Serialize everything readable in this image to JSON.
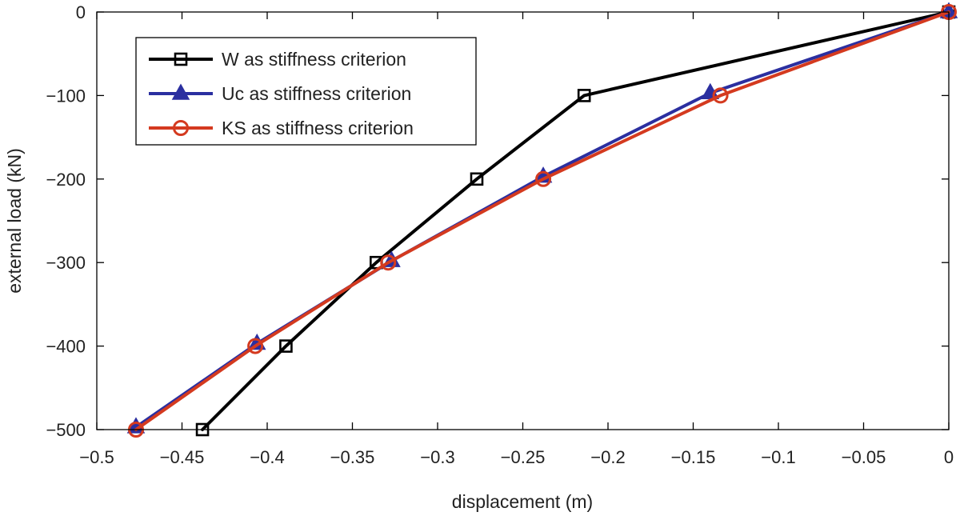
{
  "chart_data": {
    "type": "line",
    "title": "",
    "xlabel": "displacement (m)",
    "ylabel": "external load (kN)",
    "xlim": [
      -0.5,
      0
    ],
    "ylim": [
      -500,
      0
    ],
    "grid": false,
    "legend_position": "top-left",
    "xticks": [
      -0.5,
      -0.45,
      -0.4,
      -0.35,
      -0.3,
      -0.25,
      -0.2,
      -0.15,
      -0.1,
      -0.05,
      0
    ],
    "xtick_labels": [
      "−0.5",
      "−0.45",
      "−0.4",
      "−0.35",
      "−0.3",
      "−0.25",
      "−0.2",
      "−0.15",
      "−0.1",
      "−0.05",
      "0"
    ],
    "yticks": [
      0,
      -100,
      -200,
      -300,
      -400,
      -500
    ],
    "ytick_labels": [
      "0",
      "−100",
      "−200",
      "−300",
      "−400",
      "−500"
    ],
    "series": [
      {
        "key": "w",
        "name": "W as stiffness criterion",
        "color": "#000000",
        "marker": "square",
        "x": [
          0,
          -0.214,
          -0.277,
          -0.336,
          -0.389,
          -0.438
        ],
        "y": [
          0,
          -100,
          -200,
          -300,
          -400,
          -500
        ]
      },
      {
        "key": "uc",
        "name": "Uc as stiffness criterion",
        "color": "#2b2fa0",
        "marker": "triangle",
        "x": [
          0,
          -0.14,
          -0.238,
          -0.327,
          -0.406,
          -0.477
        ],
        "y": [
          0,
          -97,
          -197,
          -298,
          -397,
          -497
        ]
      },
      {
        "key": "ks",
        "name": "KS as stiffness criterion",
        "color": "#d43a1f",
        "marker": "circle",
        "x": [
          0,
          -0.134,
          -0.238,
          -0.329,
          -0.407,
          -0.477
        ],
        "y": [
          0,
          -100,
          -200,
          -300,
          -400,
          -500
        ]
      }
    ]
  }
}
